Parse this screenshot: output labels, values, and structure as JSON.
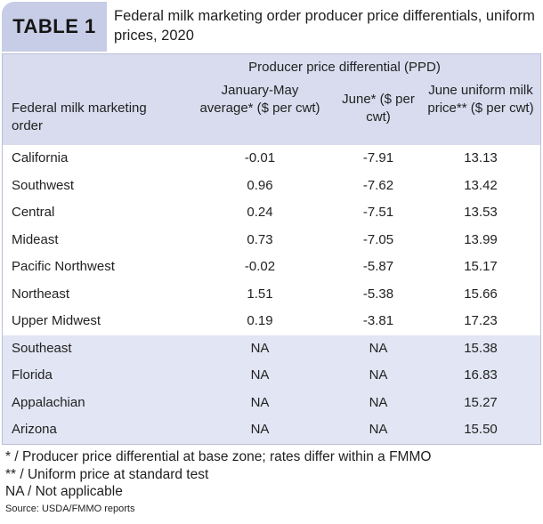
{
  "header": {
    "tag": "TABLE 1",
    "title": "Federal milk marketing order producer price differentials, uniform prices, 2020"
  },
  "table": {
    "group_header": "Producer price differential (PPD)",
    "columns": {
      "order": "Federal milk marketing order",
      "jan_may": "January-May average* ($ per cwt)",
      "june": "June* ($ per cwt)",
      "june_uniform": "June uniform milk price** ($ per cwt)"
    },
    "rows": [
      {
        "name": "California",
        "jan_may": "-0.01",
        "june": "-7.91",
        "june_uniform": "13.13"
      },
      {
        "name": "Southwest",
        "jan_may": "0.96",
        "june": "-7.62",
        "june_uniform": "13.42"
      },
      {
        "name": "Central",
        "jan_may": "0.24",
        "june": "-7.51",
        "june_uniform": "13.53"
      },
      {
        "name": "Mideast",
        "jan_may": "0.73",
        "june": "-7.05",
        "june_uniform": "13.99"
      },
      {
        "name": "Pacific Northwest",
        "jan_may": "-0.02",
        "june": "-5.87",
        "june_uniform": "15.17"
      },
      {
        "name": "Northeast",
        "jan_may": "1.51",
        "june": "-5.38",
        "june_uniform": "15.66"
      },
      {
        "name": "Upper Midwest",
        "jan_may": "0.19",
        "june": "-3.81",
        "june_uniform": "17.23"
      },
      {
        "name": "Southeast",
        "jan_may": "NA",
        "june": "NA",
        "june_uniform": "15.38"
      },
      {
        "name": "Florida",
        "jan_may": "NA",
        "june": "NA",
        "june_uniform": "16.83"
      },
      {
        "name": "Appalachian",
        "jan_may": "NA",
        "june": "NA",
        "june_uniform": "15.27"
      },
      {
        "name": "Arizona",
        "jan_may": "NA",
        "june": "NA",
        "june_uniform": "15.50"
      }
    ]
  },
  "footnotes": {
    "note1": "* / Producer price differential at base zone; rates differ within a FMMO",
    "note2": "** / Uniform price at standard test",
    "note3": "NA / Not applicable",
    "source": "Source: USDA/FMMO reports"
  },
  "colors": {
    "tag_bg": "#c7cde6",
    "header_bg": "#d8dcee",
    "shaded_row_bg": "#e2e5f3"
  }
}
